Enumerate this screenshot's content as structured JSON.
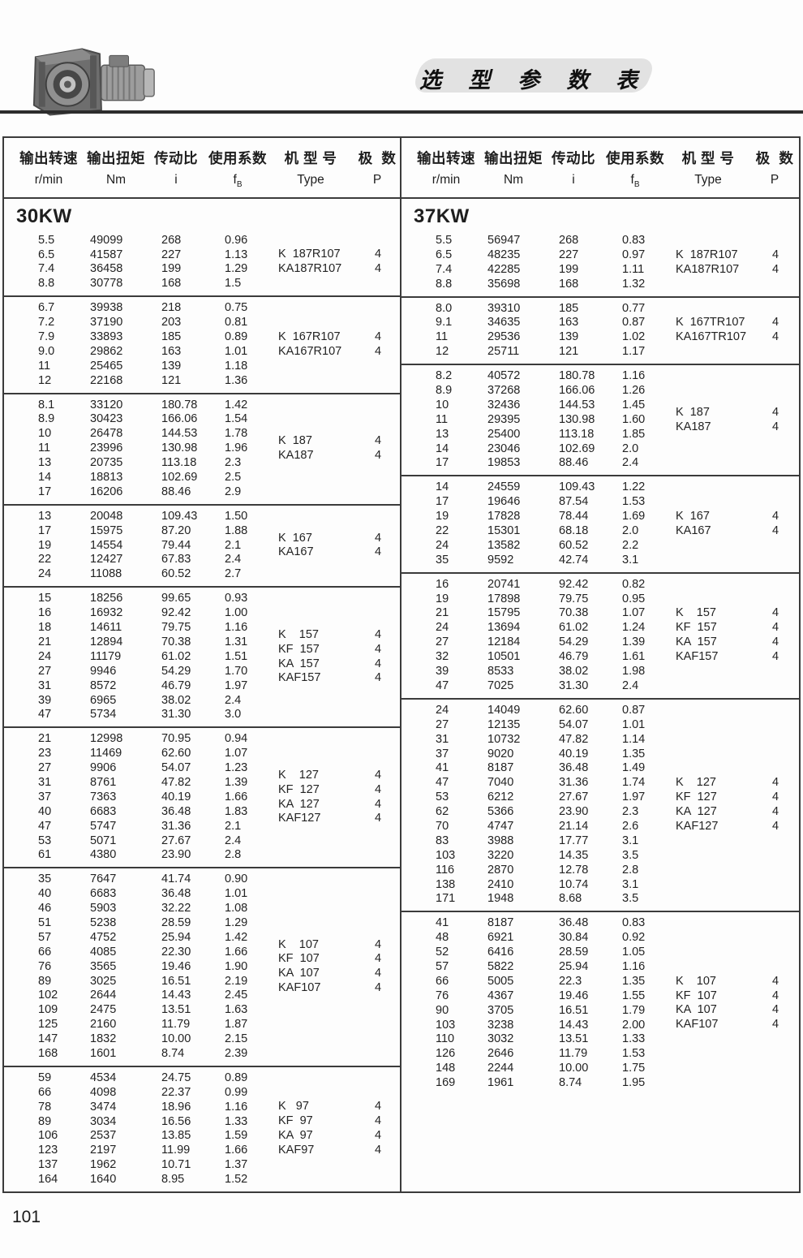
{
  "title": "选 型 参 数 表",
  "page_number": "101",
  "headers": {
    "speed_cn": "输出转速",
    "speed_unit": "r/min",
    "torque_cn": "输出扭矩",
    "torque_unit": "Nm",
    "ratio_cn": "传动比",
    "ratio_unit": "i",
    "service_cn": "使用系数",
    "service_unit_main": "f",
    "service_unit_sub": "B",
    "type_cn": "机 型 号",
    "type_unit": "Type",
    "poles_cn": "极  数",
    "poles_unit": "P"
  },
  "sections": [
    {
      "power": "30KW",
      "groups": [
        {
          "rows": [
            [
              "5.5",
              "49099",
              "268",
              "0.96"
            ],
            [
              "6.5",
              "41587",
              "227",
              "1.13"
            ],
            [
              "7.4",
              "36458",
              "199",
              "1.29"
            ],
            [
              "8.8",
              "30778",
              "168",
              "1.5"
            ]
          ],
          "types": [
            {
              "label": "K  187R107",
              "p": "4"
            },
            {
              "label": "KA187R107",
              "p": "4"
            }
          ]
        },
        {
          "rows": [
            [
              "6.7",
              "39938",
              "218",
              "0.75"
            ],
            [
              "7.2",
              "37190",
              "203",
              "0.81"
            ],
            [
              "7.9",
              "33893",
              "185",
              "0.89"
            ],
            [
              "9.0",
              "29862",
              "163",
              "1.01"
            ],
            [
              "11",
              "25465",
              "139",
              "1.18"
            ],
            [
              "12",
              "22168",
              "121",
              "1.36"
            ]
          ],
          "types": [
            {
              "label": "K  167R107",
              "p": "4"
            },
            {
              "label": "KA167R107",
              "p": "4"
            }
          ]
        },
        {
          "rows": [
            [
              "8.1",
              "33120",
              "180.78",
              "1.42"
            ],
            [
              "8.9",
              "30423",
              "166.06",
              "1.54"
            ],
            [
              "10",
              "26478",
              "144.53",
              "1.78"
            ],
            [
              "11",
              "23996",
              "130.98",
              "1.96"
            ],
            [
              "13",
              "20735",
              "113.18",
              "2.3"
            ],
            [
              "14",
              "18813",
              "102.69",
              "2.5"
            ],
            [
              "17",
              "16206",
              "88.46",
              "2.9"
            ]
          ],
          "types": [
            {
              "label": "K  187",
              "p": "4"
            },
            {
              "label": "KA187",
              "p": "4"
            }
          ]
        },
        {
          "rows": [
            [
              "13",
              "20048",
              "109.43",
              "1.50"
            ],
            [
              "17",
              "15975",
              "87.20",
              "1.88"
            ],
            [
              "19",
              "14554",
              "79.44",
              "2.1"
            ],
            [
              "22",
              "12427",
              "67.83",
              "2.4"
            ],
            [
              "24",
              "11088",
              "60.52",
              "2.7"
            ]
          ],
          "types": [
            {
              "label": "K  167",
              "p": "4"
            },
            {
              "label": "KA167",
              "p": "4"
            }
          ]
        },
        {
          "rows": [
            [
              "15",
              "18256",
              "99.65",
              "0.93"
            ],
            [
              "16",
              "16932",
              "92.42",
              "1.00"
            ],
            [
              "18",
              "14611",
              "79.75",
              "1.16"
            ],
            [
              "21",
              "12894",
              "70.38",
              "1.31"
            ],
            [
              "24",
              "11179",
              "61.02",
              "1.51"
            ],
            [
              "27",
              "9946",
              "54.29",
              "1.70"
            ],
            [
              "31",
              "8572",
              "46.79",
              "1.97"
            ],
            [
              "39",
              "6965",
              "38.02",
              "2.4"
            ],
            [
              "47",
              "5734",
              "31.30",
              "3.0"
            ]
          ],
          "types": [
            {
              "label": "K    157",
              "p": "4"
            },
            {
              "label": "KF  157",
              "p": "4"
            },
            {
              "label": "KA  157",
              "p": "4"
            },
            {
              "label": "KAF157",
              "p": "4"
            }
          ]
        },
        {
          "rows": [
            [
              "21",
              "12998",
              "70.95",
              "0.94"
            ],
            [
              "23",
              "11469",
              "62.60",
              "1.07"
            ],
            [
              "27",
              "9906",
              "54.07",
              "1.23"
            ],
            [
              "31",
              "8761",
              "47.82",
              "1.39"
            ],
            [
              "37",
              "7363",
              "40.19",
              "1.66"
            ],
            [
              "40",
              "6683",
              "36.48",
              "1.83"
            ],
            [
              "47",
              "5747",
              "31.36",
              "2.1"
            ],
            [
              "53",
              "5071",
              "27.67",
              "2.4"
            ],
            [
              "61",
              "4380",
              "23.90",
              "2.8"
            ]
          ],
          "types": [
            {
              "label": "K    127",
              "p": "4"
            },
            {
              "label": "KF  127",
              "p": "4"
            },
            {
              "label": "KA  127",
              "p": "4"
            },
            {
              "label": "KAF127",
              "p": "4"
            }
          ]
        },
        {
          "rows": [
            [
              "35",
              "7647",
              "41.74",
              "0.90"
            ],
            [
              "40",
              "6683",
              "36.48",
              "1.01"
            ],
            [
              "46",
              "5903",
              "32.22",
              "1.08"
            ],
            [
              "51",
              "5238",
              "28.59",
              "1.29"
            ],
            [
              "57",
              "4752",
              "25.94",
              "1.42"
            ],
            [
              "66",
              "4085",
              "22.30",
              "1.66"
            ],
            [
              "76",
              "3565",
              "19.46",
              "1.90"
            ],
            [
              "89",
              "3025",
              "16.51",
              "2.19"
            ],
            [
              "102",
              "2644",
              "14.43",
              "2.45"
            ],
            [
              "109",
              "2475",
              "13.51",
              "1.63"
            ],
            [
              "125",
              "2160",
              "11.79",
              "1.87"
            ],
            [
              "147",
              "1832",
              "10.00",
              "2.15"
            ],
            [
              "168",
              "1601",
              "8.74",
              "2.39"
            ]
          ],
          "types": [
            {
              "label": "K    107",
              "p": "4"
            },
            {
              "label": "KF  107",
              "p": "4"
            },
            {
              "label": "KA  107",
              "p": "4"
            },
            {
              "label": "KAF107",
              "p": "4"
            }
          ]
        },
        {
          "rows": [
            [
              "59",
              "4534",
              "24.75",
              "0.89"
            ],
            [
              "66",
              "4098",
              "22.37",
              "0.99"
            ],
            [
              "78",
              "3474",
              "18.96",
              "1.16"
            ],
            [
              "89",
              "3034",
              "16.56",
              "1.33"
            ],
            [
              "106",
              "2537",
              "13.85",
              "1.59"
            ],
            [
              "123",
              "2197",
              "11.99",
              "1.66"
            ],
            [
              "137",
              "1962",
              "10.71",
              "1.37"
            ],
            [
              "164",
              "1640",
              "8.95",
              "1.52"
            ]
          ],
          "types": [
            {
              "label": "K   97",
              "p": "4"
            },
            {
              "label": "KF  97",
              "p": "4"
            },
            {
              "label": "KA  97",
              "p": "4"
            },
            {
              "label": "KAF97",
              "p": "4"
            }
          ]
        }
      ]
    },
    {
      "power": "37KW",
      "groups": [
        {
          "rows": [
            [
              "5.5",
              "56947",
              "268",
              "0.83"
            ],
            [
              "6.5",
              "48235",
              "227",
              "0.97"
            ],
            [
              "7.4",
              "42285",
              "199",
              "1.11"
            ],
            [
              "8.8",
              "35698",
              "168",
              "1.32"
            ]
          ],
          "types": [
            {
              "label": "K  187R107",
              "p": "4"
            },
            {
              "label": "KA187R107",
              "p": "4"
            }
          ]
        },
        {
          "rows": [
            [
              "8.0",
              "39310",
              "185",
              "0.77"
            ],
            [
              "9.1",
              "34635",
              "163",
              "0.87"
            ],
            [
              "11",
              "29536",
              "139",
              "1.02"
            ],
            [
              "12",
              "25711",
              "121",
              "1.17"
            ]
          ],
          "types": [
            {
              "label": "K  167TR107",
              "p": "4"
            },
            {
              "label": "KA167TR107",
              "p": "4"
            }
          ]
        },
        {
          "rows": [
            [
              "8.2",
              "40572",
              "180.78",
              "1.16"
            ],
            [
              "8.9",
              "37268",
              "166.06",
              "1.26"
            ],
            [
              "10",
              "32436",
              "144.53",
              "1.45"
            ],
            [
              "11",
              "29395",
              "130.98",
              "1.60"
            ],
            [
              "13",
              "25400",
              "113.18",
              "1.85"
            ],
            [
              "14",
              "23046",
              "102.69",
              "2.0"
            ],
            [
              "17",
              "19853",
              "88.46",
              "2.4"
            ]
          ],
          "types": [
            {
              "label": "K  187",
              "p": "4"
            },
            {
              "label": "KA187",
              "p": "4"
            }
          ]
        },
        {
          "rows": [
            [
              "14",
              "24559",
              "109.43",
              "1.22"
            ],
            [
              "17",
              "19646",
              "87.54",
              "1.53"
            ],
            [
              "19",
              "17828",
              "78.44",
              "1.69"
            ],
            [
              "22",
              "15301",
              "68.18",
              "2.0"
            ],
            [
              "24",
              "13582",
              "60.52",
              "2.2"
            ],
            [
              "35",
              "9592",
              "42.74",
              "3.1"
            ]
          ],
          "types": [
            {
              "label": "K  167",
              "p": "4"
            },
            {
              "label": "KA167",
              "p": "4"
            }
          ]
        },
        {
          "rows": [
            [
              "16",
              "20741",
              "92.42",
              "0.82"
            ],
            [
              "19",
              "17898",
              "79.75",
              "0.95"
            ],
            [
              "21",
              "15795",
              "70.38",
              "1.07"
            ],
            [
              "24",
              "13694",
              "61.02",
              "1.24"
            ],
            [
              "27",
              "12184",
              "54.29",
              "1.39"
            ],
            [
              "32",
              "10501",
              "46.79",
              "1.61"
            ],
            [
              "39",
              "8533",
              "38.02",
              "1.98"
            ],
            [
              "47",
              "7025",
              "31.30",
              "2.4"
            ]
          ],
          "types": [
            {
              "label": "K    157",
              "p": "4"
            },
            {
              "label": "KF  157",
              "p": "4"
            },
            {
              "label": "KA  157",
              "p": "4"
            },
            {
              "label": "KAF157",
              "p": "4"
            }
          ]
        },
        {
          "rows": [
            [
              "24",
              "14049",
              "62.60",
              "0.87"
            ],
            [
              "27",
              "12135",
              "54.07",
              "1.01"
            ],
            [
              "31",
              "10732",
              "47.82",
              "1.14"
            ],
            [
              "37",
              "9020",
              "40.19",
              "1.35"
            ],
            [
              "41",
              "8187",
              "36.48",
              "1.49"
            ],
            [
              "47",
              "7040",
              "31.36",
              "1.74"
            ],
            [
              "53",
              "6212",
              "27.67",
              "1.97"
            ],
            [
              "62",
              "5366",
              "23.90",
              "2.3"
            ],
            [
              "70",
              "4747",
              "21.14",
              "2.6"
            ],
            [
              "83",
              "3988",
              "17.77",
              "3.1"
            ],
            [
              "103",
              "3220",
              "14.35",
              "3.5"
            ],
            [
              "116",
              "2870",
              "12.78",
              "2.8"
            ],
            [
              "138",
              "2410",
              "10.74",
              "3.1"
            ],
            [
              "171",
              "1948",
              "8.68",
              "3.5"
            ]
          ],
          "types": [
            {
              "label": "K    127",
              "p": "4"
            },
            {
              "label": "KF  127",
              "p": "4"
            },
            {
              "label": "KA  127",
              "p": "4"
            },
            {
              "label": "KAF127",
              "p": "4"
            }
          ]
        },
        {
          "rows": [
            [
              "41",
              "8187",
              "36.48",
              "0.83"
            ],
            [
              "48",
              "6921",
              "30.84",
              "0.92"
            ],
            [
              "52",
              "6416",
              "28.59",
              "1.05"
            ],
            [
              "57",
              "5822",
              "25.94",
              "1.16"
            ],
            [
              "66",
              "5005",
              "22.3",
              "1.35"
            ],
            [
              "76",
              "4367",
              "19.46",
              "1.55"
            ],
            [
              "90",
              "3705",
              "16.51",
              "1.79"
            ],
            [
              "103",
              "3238",
              "14.43",
              "2.00"
            ],
            [
              "110",
              "3032",
              "13.51",
              "1.33"
            ],
            [
              "126",
              "2646",
              "11.79",
              "1.53"
            ],
            [
              "148",
              "2244",
              "10.00",
              "1.75"
            ],
            [
              "169",
              "1961",
              "8.74",
              "1.95"
            ]
          ],
          "types": [
            {
              "label": "K    107",
              "p": "4"
            },
            {
              "label": "KF  107",
              "p": "4"
            },
            {
              "label": "KA  107",
              "p": "4"
            },
            {
              "label": "KAF107",
              "p": "4"
            }
          ]
        }
      ]
    }
  ]
}
